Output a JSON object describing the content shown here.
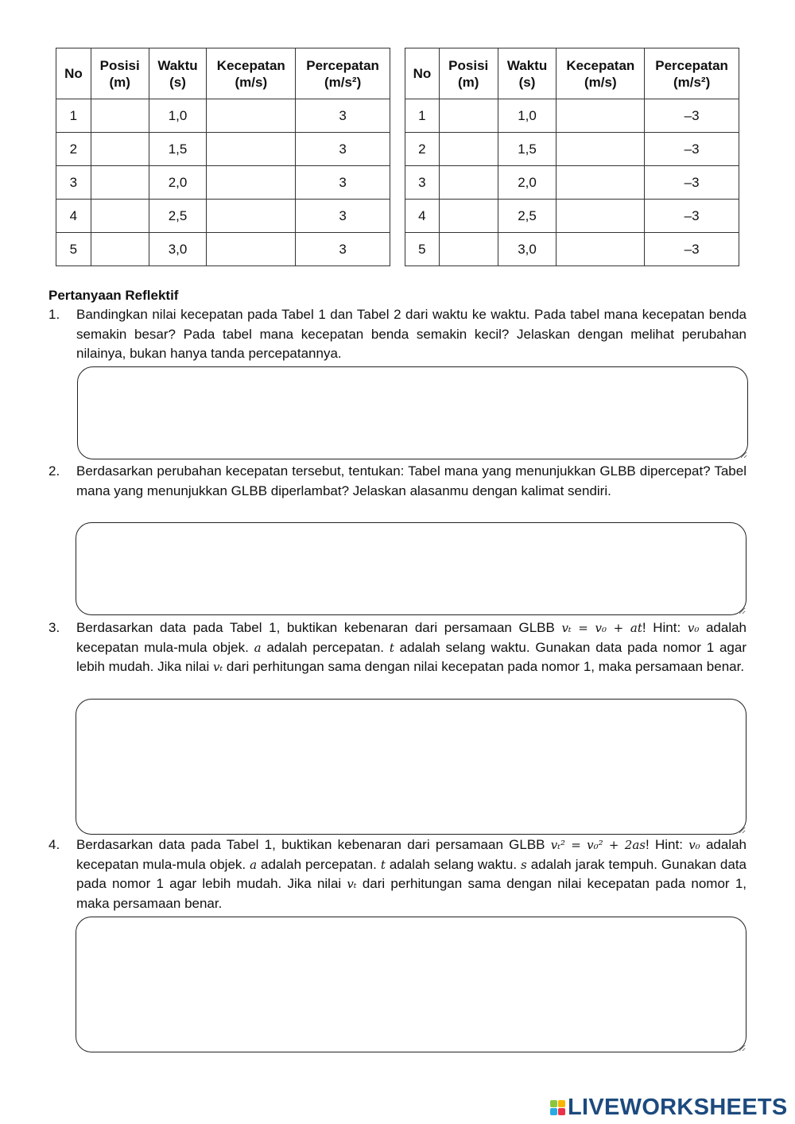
{
  "table1": {
    "headers": [
      [
        "No",
        ""
      ],
      [
        "Posisi",
        "(m)"
      ],
      [
        "Waktu",
        "(s)"
      ],
      [
        "Kecepatan",
        "(m/s)"
      ],
      [
        "Percepatan",
        "(m/s²)"
      ]
    ],
    "rows": [
      {
        "no": "1",
        "posisi": "",
        "waktu": "1,0",
        "kecepatan": "",
        "percepatan": "3"
      },
      {
        "no": "2",
        "posisi": "",
        "waktu": "1,5",
        "kecepatan": "",
        "percepatan": "3"
      },
      {
        "no": "3",
        "posisi": "",
        "waktu": "2,0",
        "kecepatan": "",
        "percepatan": "3"
      },
      {
        "no": "4",
        "posisi": "",
        "waktu": "2,5",
        "kecepatan": "",
        "percepatan": "3"
      },
      {
        "no": "5",
        "posisi": "",
        "waktu": "3,0",
        "kecepatan": "",
        "percepatan": "3"
      }
    ]
  },
  "table2": {
    "headers": [
      [
        "No",
        ""
      ],
      [
        "Posisi",
        "(m)"
      ],
      [
        "Waktu",
        "(s)"
      ],
      [
        "Kecepatan",
        "(m/s)"
      ],
      [
        "Percepatan",
        "(m/s²)"
      ]
    ],
    "rows": [
      {
        "no": "1",
        "posisi": "",
        "waktu": "1,0",
        "kecepatan": "",
        "percepatan": "–3"
      },
      {
        "no": "2",
        "posisi": "",
        "waktu": "1,5",
        "kecepatan": "",
        "percepatan": "–3"
      },
      {
        "no": "3",
        "posisi": "",
        "waktu": "2,0",
        "kecepatan": "",
        "percepatan": "–3"
      },
      {
        "no": "4",
        "posisi": "",
        "waktu": "2,5",
        "kecepatan": "",
        "percepatan": "–3"
      },
      {
        "no": "5",
        "posisi": "",
        "waktu": "3,0",
        "kecepatan": "",
        "percepatan": "–3"
      }
    ]
  },
  "heading": "Pertanyaan Reflektif",
  "questions": [
    {
      "num": "1.",
      "segments": [
        {
          "t": "Bandingkan nilai kecepatan pada Tabel 1 dan Tabel 2 dari waktu ke waktu. Pada tabel mana kecepatan benda semakin besar? Pada tabel mana kecepatan benda semakin kecil? Jelaskan dengan melihat perubahan nilainya, bukan hanya tanda percepatannya."
        }
      ]
    },
    {
      "num": "2.",
      "segments": [
        {
          "t": "Berdasarkan perubahan kecepatan tersebut, tentukan: Tabel mana yang menunjukkan GLBB dipercepat? Tabel mana yang menunjukkan GLBB diperlambat? Jelaskan alasanmu dengan kalimat sendiri."
        }
      ]
    },
    {
      "num": "3.",
      "segments": [
        {
          "t": "Berdasarkan data pada Tabel 1, buktikan kebenaran dari persamaan GLBB "
        },
        {
          "m": "vₜ = v₀ + at"
        },
        {
          "t": "! Hint: "
        },
        {
          "m": "v₀"
        },
        {
          "t": " adalah kecepatan mula-mula objek. "
        },
        {
          "m": "a"
        },
        {
          "t": " adalah percepatan. "
        },
        {
          "m": "t"
        },
        {
          "t": " adalah selang waktu. Gunakan data pada nomor 1 agar lebih mudah. Jika nilai "
        },
        {
          "m": "vₜ"
        },
        {
          "t": " dari perhitungan sama dengan nilai kecepatan pada nomor 1, maka persamaan benar."
        }
      ]
    },
    {
      "num": "4.",
      "segments": [
        {
          "t": "Berdasarkan data pada Tabel 1, buktikan kebenaran dari persamaan GLBB "
        },
        {
          "m": "vₜ² = v₀² + 2as"
        },
        {
          "t": "! Hint: "
        },
        {
          "m": "v₀"
        },
        {
          "t": " adalah kecepatan mula-mula objek. "
        },
        {
          "m": "a"
        },
        {
          "t": " adalah percepatan. "
        },
        {
          "m": "t"
        },
        {
          "t": " adalah selang waktu. "
        },
        {
          "m": "s"
        },
        {
          "t": " adalah jarak tempuh. Gunakan data pada nomor 1 agar lebih mudah. Jika nilai "
        },
        {
          "m": "vₜ"
        },
        {
          "t": " dari perhitungan sama dengan nilai kecepatan pada nomor 1, maka persamaan benar."
        }
      ]
    }
  ],
  "logo": {
    "text": "LIVEWORKSHEETS",
    "letters": [
      "L",
      "I",
      "V",
      "E"
    ],
    "colors": [
      "#8cc63f",
      "#f7b500",
      "#29abe2",
      "#e8334a"
    ],
    "text_color": "#1c4a7e"
  }
}
